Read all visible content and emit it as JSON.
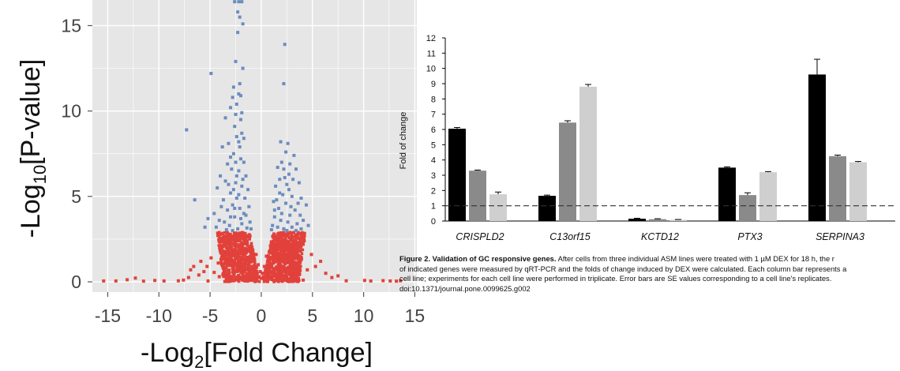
{
  "chart_data": [
    {
      "type": "scatter",
      "xlabel_main": "-Log",
      "xlabel_sub": "2",
      "xlabel_rest": "[Fold Change]",
      "ylabel_main": "-Log",
      "ylabel_sub": "10",
      "ylabel_rest": "[P-value]",
      "xlim": [
        -16.5,
        15.2
      ],
      "ylim": [
        -0.6,
        16.5
      ],
      "xticks": [
        -15,
        -10,
        -5,
        0,
        5,
        10,
        15
      ],
      "xtick_labels": [
        "-15",
        "-10",
        "-5",
        "0",
        "5",
        "10",
        "15"
      ],
      "yticks": [
        0,
        5,
        10,
        15
      ],
      "ytick_labels": [
        "0",
        "5",
        "10",
        "15"
      ],
      "significance_threshold": 2.9,
      "colors": {
        "significant": "#6b8cc0",
        "not_significant": "#e2413b",
        "panel": "#e6e6e6",
        "grid": "#ffffff"
      },
      "series": [
        {
          "values": [
            [
              -2.6,
              16.4
            ],
            [
              -2.2,
              16.4
            ],
            [
              -1.9,
              16.4
            ],
            [
              -2.3,
              15.8
            ],
            [
              -2.1,
              15.5
            ],
            [
              -1.8,
              15.1
            ],
            [
              -2.3,
              14.6
            ],
            [
              -2.5,
              12.9
            ],
            [
              -4.9,
              12.2
            ],
            [
              -2.1,
              11.6
            ],
            [
              -7.3,
              8.9
            ],
            [
              -6.5,
              4.8
            ],
            [
              -5.2,
              3.7
            ],
            [
              -5.5,
              3.2
            ],
            [
              -3.5,
              9.6
            ],
            [
              -3.2,
              8.1
            ],
            [
              -2.8,
              10.8
            ],
            [
              -3.0,
              10.2
            ],
            [
              -2.5,
              9.8
            ],
            [
              -2.2,
              11.0
            ],
            [
              -1.8,
              12.5
            ],
            [
              -2.0,
              9.5
            ],
            [
              -2.4,
              8.5
            ],
            [
              -3.8,
              7.9
            ],
            [
              -3.3,
              6.9
            ],
            [
              -2.7,
              7.5
            ],
            [
              -1.9,
              8.7
            ],
            [
              -2.1,
              7.9
            ],
            [
              -2.9,
              6.6
            ],
            [
              -3.5,
              5.9
            ],
            [
              -4.0,
              6.2
            ],
            [
              -4.3,
              5.5
            ],
            [
              -3.7,
              4.8
            ],
            [
              -3.0,
              5.2
            ],
            [
              -2.5,
              5.8
            ],
            [
              -2.2,
              6.5
            ],
            [
              -1.7,
              7.0
            ],
            [
              -1.5,
              6.2
            ],
            [
              -1.9,
              5.6
            ],
            [
              -2.4,
              4.9
            ],
            [
              -2.8,
              4.5
            ],
            [
              -3.3,
              4.2
            ],
            [
              -3.9,
              4.4
            ],
            [
              -4.6,
              4.0
            ],
            [
              -4.1,
              3.6
            ],
            [
              -3.6,
              3.5
            ],
            [
              -3.1,
              3.3
            ],
            [
              -2.6,
              3.8
            ],
            [
              -2.1,
              4.3
            ],
            [
              -1.6,
              4.9
            ],
            [
              -1.3,
              5.4
            ],
            [
              -1.2,
              4.4
            ],
            [
              -1.5,
              3.9
            ],
            [
              -1.9,
              3.4
            ],
            [
              -2.3,
              3.1
            ],
            [
              -2.8,
              3.0
            ],
            [
              -3.4,
              3.05
            ],
            [
              -4.4,
              3.2
            ],
            [
              -1.1,
              3.5
            ],
            [
              -1.4,
              3.15
            ],
            [
              -1.0,
              3.1
            ],
            [
              -2.0,
              3.7
            ],
            [
              -2.6,
              4.3
            ],
            [
              -3.0,
              3.8
            ],
            [
              -1.7,
              4.0
            ],
            [
              -2.2,
              5.1
            ],
            [
              -2.7,
              5.4
            ],
            [
              -3.2,
              5.7
            ],
            [
              -2.4,
              6.2
            ],
            [
              -1.8,
              6.0
            ],
            [
              -2.0,
              7.2
            ],
            [
              -2.5,
              7.0
            ],
            [
              -3.0,
              7.3
            ],
            [
              -2.2,
              8.2
            ],
            [
              -2.6,
              9.1
            ],
            [
              -1.9,
              9.9
            ],
            [
              -2.4,
              10.4
            ],
            [
              -2.0,
              10.9
            ],
            [
              -2.7,
              11.4
            ],
            [
              -1.7,
              8.4
            ],
            [
              2.3,
              13.9
            ],
            [
              2.2,
              11.6
            ],
            [
              1.9,
              8.2
            ],
            [
              2.6,
              8.1
            ],
            [
              2.4,
              7.6
            ],
            [
              3.2,
              7.4
            ],
            [
              2.8,
              6.9
            ],
            [
              2.0,
              7.0
            ],
            [
              1.6,
              6.7
            ],
            [
              3.4,
              6.6
            ],
            [
              2.3,
              6.1
            ],
            [
              1.8,
              6.0
            ],
            [
              1.4,
              5.6
            ],
            [
              3.7,
              5.8
            ],
            [
              2.7,
              5.4
            ],
            [
              1.5,
              4.8
            ],
            [
              2.1,
              5.1
            ],
            [
              3.0,
              5.0
            ],
            [
              3.9,
              4.9
            ],
            [
              4.4,
              4.5
            ],
            [
              1.2,
              4.7
            ],
            [
              1.7,
              4.3
            ],
            [
              2.4,
              4.6
            ],
            [
              3.3,
              4.2
            ],
            [
              3.8,
              3.9
            ],
            [
              2.8,
              3.9
            ],
            [
              1.3,
              3.8
            ],
            [
              1.9,
              3.6
            ],
            [
              2.6,
              3.5
            ],
            [
              3.5,
              3.4
            ],
            [
              4.1,
              3.6
            ],
            [
              1.1,
              3.3
            ],
            [
              1.6,
              3.2
            ],
            [
              2.2,
              3.1
            ],
            [
              3.0,
              3.2
            ],
            [
              3.9,
              3.1
            ],
            [
              4.6,
              3.3
            ],
            [
              1.0,
              3.05
            ],
            [
              2.5,
              3.0
            ],
            [
              3.4,
              3.0
            ],
            [
              2.0,
              4.0
            ],
            [
              2.9,
              4.4
            ],
            [
              1.8,
              5.2
            ],
            [
              2.5,
              5.7
            ],
            [
              3.1,
              6.0
            ],
            [
              2.2,
              6.6
            ],
            [
              1.3,
              4.2
            ],
            [
              3.6,
              4.6
            ],
            [
              2.7,
              6.3
            ]
          ]
        },
        {
          "values": [
            [
              -15.4,
              0.05
            ],
            [
              -14.2,
              0.05
            ],
            [
              -13.1,
              0.12
            ],
            [
              -12.3,
              0.22
            ],
            [
              -11.5,
              0.04
            ],
            [
              -10.4,
              0.08
            ],
            [
              -9.5,
              0.05
            ],
            [
              -8.1,
              0.06
            ],
            [
              -7.6,
              0.1
            ],
            [
              -7.1,
              0.25
            ],
            [
              -6.6,
              0.9
            ],
            [
              -6.1,
              0.4
            ],
            [
              -5.6,
              0.6
            ],
            [
              -5.2,
              0.05
            ],
            [
              -6.9,
              0.7
            ],
            [
              -5.9,
              1.2
            ],
            [
              -5.3,
              0.9
            ],
            [
              -4.9,
              1.4
            ],
            [
              -4.6,
              0.55
            ],
            [
              -4.2,
              1.1
            ],
            [
              -3.9,
              1.8
            ],
            [
              -3.6,
              0.8
            ],
            [
              -3.3,
              2.2
            ],
            [
              -3.0,
              1.5
            ],
            [
              -2.7,
              2.6
            ],
            [
              -2.4,
              1.0
            ],
            [
              -2.2,
              2.0
            ],
            [
              -1.9,
              2.7
            ],
            [
              -1.6,
              1.6
            ],
            [
              -1.4,
              2.4
            ],
            [
              -1.2,
              1.2
            ],
            [
              -1.0,
              2.1
            ],
            [
              -0.8,
              1.4
            ],
            [
              -0.6,
              0.9
            ],
            [
              -0.5,
              1.6
            ],
            [
              -0.4,
              0.5
            ],
            [
              -0.3,
              1.0
            ],
            [
              -0.2,
              0.3
            ],
            [
              -0.1,
              0.6
            ],
            [
              0.0,
              0.2
            ],
            [
              0.1,
              0.5
            ],
            [
              0.2,
              0.3
            ],
            [
              0.3,
              0.9
            ],
            [
              0.4,
              0.5
            ],
            [
              0.5,
              1.5
            ],
            [
              0.6,
              0.8
            ],
            [
              0.8,
              1.3
            ],
            [
              1.0,
              2.0
            ],
            [
              1.2,
              1.1
            ],
            [
              1.4,
              2.5
            ],
            [
              1.6,
              1.7
            ],
            [
              1.9,
              2.8
            ],
            [
              2.1,
              1.2
            ],
            [
              2.4,
              2.3
            ],
            [
              2.7,
              1.6
            ],
            [
              3.0,
              2.6
            ],
            [
              3.3,
              1.0
            ],
            [
              3.6,
              2.0
            ],
            [
              3.9,
              1.3
            ],
            [
              4.2,
              2.4
            ],
            [
              4.5,
              0.7
            ],
            [
              4.9,
              1.6
            ],
            [
              5.3,
              0.9
            ],
            [
              5.8,
              1.2
            ],
            [
              6.3,
              0.5
            ],
            [
              6.9,
              0.25
            ],
            [
              7.5,
              0.35
            ],
            [
              8.3,
              0.06
            ],
            [
              10.1,
              0.08
            ],
            [
              10.7,
              0.05
            ],
            [
              11.9,
              0.07
            ],
            [
              12.6,
              0.05
            ],
            [
              13.2,
              0.04
            ],
            [
              13.6,
              0.06
            ],
            [
              -3.1,
              0.3
            ],
            [
              -2.5,
              0.2
            ],
            [
              -1.8,
              0.4
            ],
            [
              -1.3,
              0.15
            ],
            [
              -0.9,
              0.35
            ],
            [
              0.9,
              0.25
            ],
            [
              1.5,
              0.4
            ],
            [
              2.2,
              0.15
            ],
            [
              2.9,
              0.35
            ],
            [
              3.5,
              0.2
            ],
            [
              4.1,
              0.1
            ],
            [
              -4.1,
              0.3
            ],
            [
              -2.0,
              0.8
            ],
            [
              2.0,
              0.7
            ],
            [
              -1.1,
              0.7
            ],
            [
              1.1,
              0.6
            ]
          ]
        }
      ]
    },
    {
      "type": "bar",
      "ylabel": "Fold of change",
      "ylim": [
        0,
        12
      ],
      "yticks": [
        0,
        1,
        2,
        3,
        4,
        5,
        6,
        7,
        8,
        9,
        10,
        11,
        12
      ],
      "ytick_labels": [
        "0",
        "1",
        "2",
        "3",
        "4",
        "5",
        "6",
        "7",
        "8",
        "9",
        "10",
        "11",
        "12"
      ],
      "reference_line": 1,
      "categories": [
        "CRISPLD2",
        "C13orf15",
        "KCTD12",
        "PTX3",
        "SERPINA3"
      ],
      "series_colors": [
        "#000000",
        "#8a8a8a",
        "#cfcfcf"
      ],
      "series": [
        {
          "values": [
            6.05,
            1.65,
            0.15,
            3.5,
            9.6
          ],
          "errors": [
            0.08,
            0.05,
            0.03,
            0.05,
            1.0
          ]
        },
        {
          "values": [
            3.3,
            6.45,
            0.12,
            1.7,
            4.25
          ],
          "errors": [
            0.04,
            0.12,
            0.03,
            0.15,
            0.07
          ]
        },
        {
          "values": [
            1.75,
            8.8,
            0.08,
            3.2,
            3.85
          ],
          "errors": [
            0.15,
            0.15,
            0.02,
            0.04,
            0.05
          ]
        }
      ]
    }
  ],
  "caption": {
    "figure_label": "Figure 2. Validation of GC responsive genes.",
    "line1": "After cells from three individual ASM lines were treated with 1 µM DEX for 18 h, the r",
    "line2": "of indicated genes were measured by qRT-PCR and the folds of change induced by DEX were calculated. Each column bar represents a",
    "line3": "cell line; experiments for each cell line were performed in triplicate. Error bars are SE values corresponding to a cell line's replicates.",
    "line4": "doi:10.1371/journal.pone.0099625.g002"
  }
}
